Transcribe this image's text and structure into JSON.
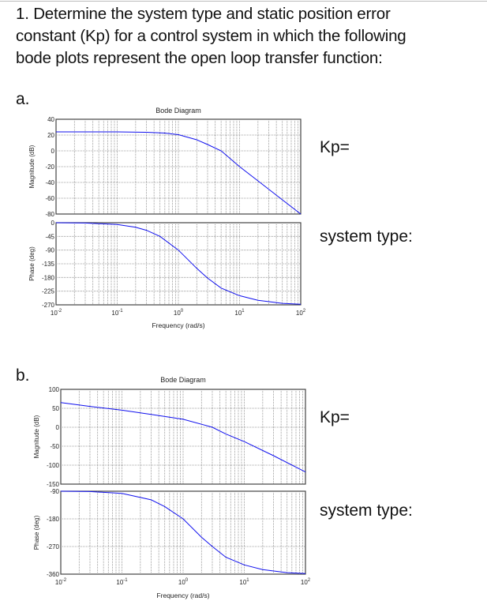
{
  "question": {
    "lines": [
      "1. Determine the system type and static position error",
      "constant (Kp) for a control system in which the following",
      "bode plots represent the open loop transfer function:"
    ]
  },
  "parts": [
    {
      "label": "a.",
      "kp_label": "Kp=",
      "type_label": "system type:"
    },
    {
      "label": "b.",
      "kp_label": "Kp=",
      "type_label": "system type:"
    }
  ],
  "colors": {
    "curve": "#1010ee",
    "grid": "#888888",
    "axis": "#444444"
  },
  "chart_data": [
    {
      "type": "line",
      "title": "Bode Diagram",
      "xlabel": "Frequency  (rad/s)",
      "xscale": "log",
      "xlim": [
        0.01,
        100
      ],
      "x_tick_labels": [
        "10^-2",
        "10^-1",
        "10^0",
        "10^1",
        "10^2"
      ],
      "magnitude": {
        "ylabel": "Magnitude (dB)",
        "ylim": [
          -80,
          40
        ],
        "yticks": [
          40,
          20,
          0,
          -20,
          -40,
          -60,
          -80
        ],
        "x": [
          0.01,
          0.1,
          0.3,
          0.6,
          1,
          2,
          3,
          5,
          10,
          20,
          50,
          100
        ],
        "y": [
          24,
          24,
          23.5,
          22.5,
          20.5,
          14,
          8,
          0,
          -20,
          -38,
          -62,
          -80
        ]
      },
      "phase": {
        "ylabel": "Phase (deg)",
        "ylim": [
          -270,
          0
        ],
        "yticks": [
          0,
          -45,
          -90,
          -135,
          -180,
          -225,
          -270
        ],
        "x": [
          0.01,
          0.03,
          0.1,
          0.2,
          0.3,
          0.5,
          1,
          2,
          3,
          5,
          10,
          20,
          50,
          100
        ],
        "y": [
          0,
          -1,
          -6,
          -15,
          -25,
          -45,
          -90,
          -150,
          -182,
          -215,
          -240,
          -255,
          -265,
          -268
        ]
      }
    },
    {
      "type": "line",
      "title": "Bode Diagram",
      "xlabel": "Frequency  (rad/s)",
      "xscale": "log",
      "xlim": [
        0.01,
        100
      ],
      "x_tick_labels": [
        "10^-2",
        "10^-1",
        "10^0",
        "10^1",
        "10^2"
      ],
      "magnitude": {
        "ylabel": "Magnitude (dB)",
        "ylim": [
          -150,
          100
        ],
        "yticks": [
          100,
          50,
          0,
          -50,
          -100,
          -150
        ],
        "x": [
          0.01,
          0.03,
          0.1,
          0.3,
          1,
          2,
          3,
          5,
          10,
          30,
          100
        ],
        "y": [
          65,
          55,
          45,
          34,
          21,
          8,
          0,
          -18,
          -38,
          -75,
          -118
        ]
      },
      "phase": {
        "ylabel": "Phase (deg)",
        "ylim": [
          -360,
          -90
        ],
        "yticks": [
          -90,
          -180,
          -270,
          -360
        ],
        "x": [
          0.01,
          0.03,
          0.1,
          0.3,
          0.5,
          1,
          2,
          3,
          5,
          10,
          20,
          50,
          100
        ],
        "y": [
          -90,
          -91,
          -97,
          -118,
          -140,
          -180,
          -240,
          -270,
          -305,
          -330,
          -345,
          -355,
          -358
        ]
      }
    }
  ]
}
